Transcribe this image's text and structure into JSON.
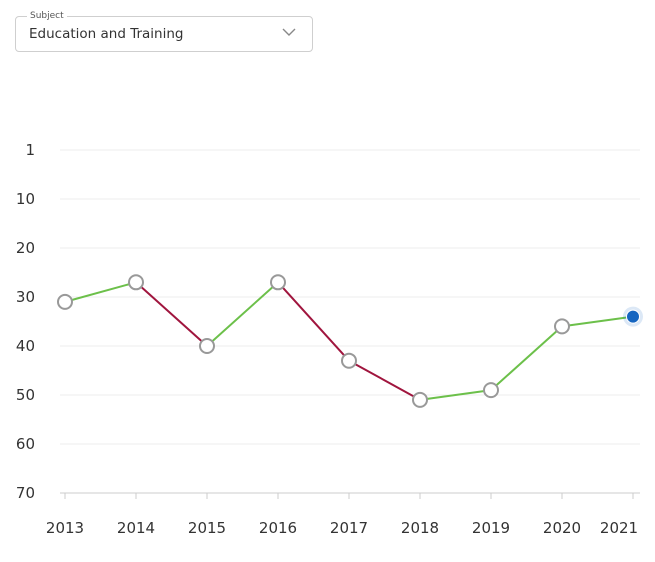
{
  "subject": {
    "label": "Subject",
    "value": "Education and Training"
  },
  "colors": {
    "increase": "#6cc04a",
    "decrease": "#a0153e",
    "marker_fill": "#ffffff",
    "marker_stroke": "#999999",
    "current": "#1565c0",
    "grid": "#ececec",
    "axis": "#cccccc"
  },
  "chart_data": {
    "type": "line",
    "title": "",
    "xlabel": "",
    "ylabel": "",
    "y_reversed": true,
    "ylim": [
      1,
      70
    ],
    "y_ticks": [
      1,
      10,
      20,
      30,
      40,
      50,
      60,
      70
    ],
    "x": [
      2013,
      2014,
      2015,
      2016,
      2017,
      2018,
      2019,
      2020,
      2021
    ],
    "x_labels": [
      "2013",
      "2014",
      "2015",
      "2016",
      "2017",
      "2018",
      "2019",
      "2020",
      "2021"
    ],
    "series": [
      {
        "values": [
          31,
          27,
          40,
          27,
          43,
          51,
          49,
          36,
          34
        ]
      }
    ],
    "grid": true,
    "legend": "none"
  }
}
